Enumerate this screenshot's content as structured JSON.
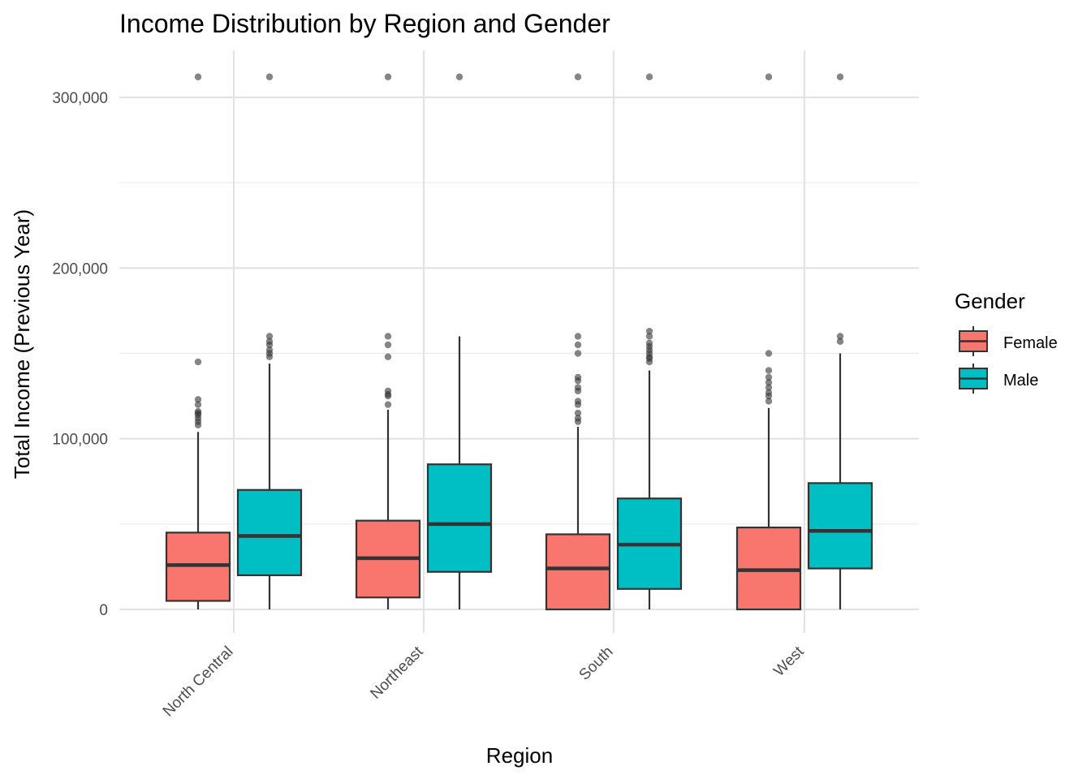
{
  "chart_data": {
    "type": "boxplot",
    "title": "Income Distribution by Region and Gender",
    "xlabel": "Region",
    "ylabel": "Total Income (Previous Year)",
    "ylim": [
      -14000,
      328000
    ],
    "y_ticks": [
      0,
      100000,
      200000,
      300000
    ],
    "y_tick_labels": [
      "0",
      "100,000",
      "200,000",
      "300,000"
    ],
    "grid": true,
    "legend": {
      "title": "Gender",
      "placement": "right",
      "entries": [
        "Female",
        "Male"
      ]
    },
    "colors": {
      "Female": "#F8766D",
      "Male": "#00BFC4"
    },
    "categories": [
      "North Central",
      "Northeast",
      "South",
      "West"
    ],
    "series": [
      {
        "name": "Female",
        "boxes": [
          {
            "whisker_low": 0,
            "q1": 5000,
            "median": 26000,
            "q3": 45000,
            "whisker_high": 104000,
            "outliers": [
              108000,
              110000,
              112000,
              114000,
              115000,
              116000,
              120000,
              123000,
              145000,
              312000
            ]
          },
          {
            "whisker_low": 0,
            "q1": 7000,
            "median": 30000,
            "q3": 52000,
            "whisker_high": 117000,
            "outliers": [
              120000,
              125000,
              126000,
              128000,
              148000,
              155000,
              160000,
              312000
            ]
          },
          {
            "whisker_low": 0,
            "q1": 0,
            "median": 24000,
            "q3": 44000,
            "whisker_high": 107000,
            "outliers": [
              110000,
              112000,
              115000,
              120000,
              122000,
              128000,
              130000,
              134000,
              136000,
              150000,
              155000,
              160000,
              312000
            ]
          },
          {
            "whisker_low": 0,
            "q1": 0,
            "median": 23000,
            "q3": 48000,
            "whisker_high": 118000,
            "outliers": [
              122000,
              125000,
              127000,
              130000,
              133000,
              136000,
              140000,
              150000,
              312000
            ]
          }
        ]
      },
      {
        "name": "Male",
        "boxes": [
          {
            "whisker_low": 0,
            "q1": 20000,
            "median": 43000,
            "q3": 70000,
            "whisker_high": 144000,
            "outliers": [
              148000,
              150000,
              152000,
              155000,
              157000,
              160000,
              312000
            ]
          },
          {
            "whisker_low": 0,
            "q1": 22000,
            "median": 50000,
            "q3": 85000,
            "whisker_high": 160000,
            "outliers": [
              312000
            ]
          },
          {
            "whisker_low": 0,
            "q1": 12000,
            "median": 38000,
            "q3": 65000,
            "whisker_high": 140000,
            "outliers": [
              145000,
              147000,
              148000,
              150000,
              152000,
              154000,
              156000,
              160000,
              163000,
              312000
            ]
          },
          {
            "whisker_low": 0,
            "q1": 24000,
            "median": 46000,
            "q3": 74000,
            "whisker_high": 150000,
            "outliers": [
              157000,
              160000,
              312000
            ]
          }
        ]
      }
    ]
  }
}
